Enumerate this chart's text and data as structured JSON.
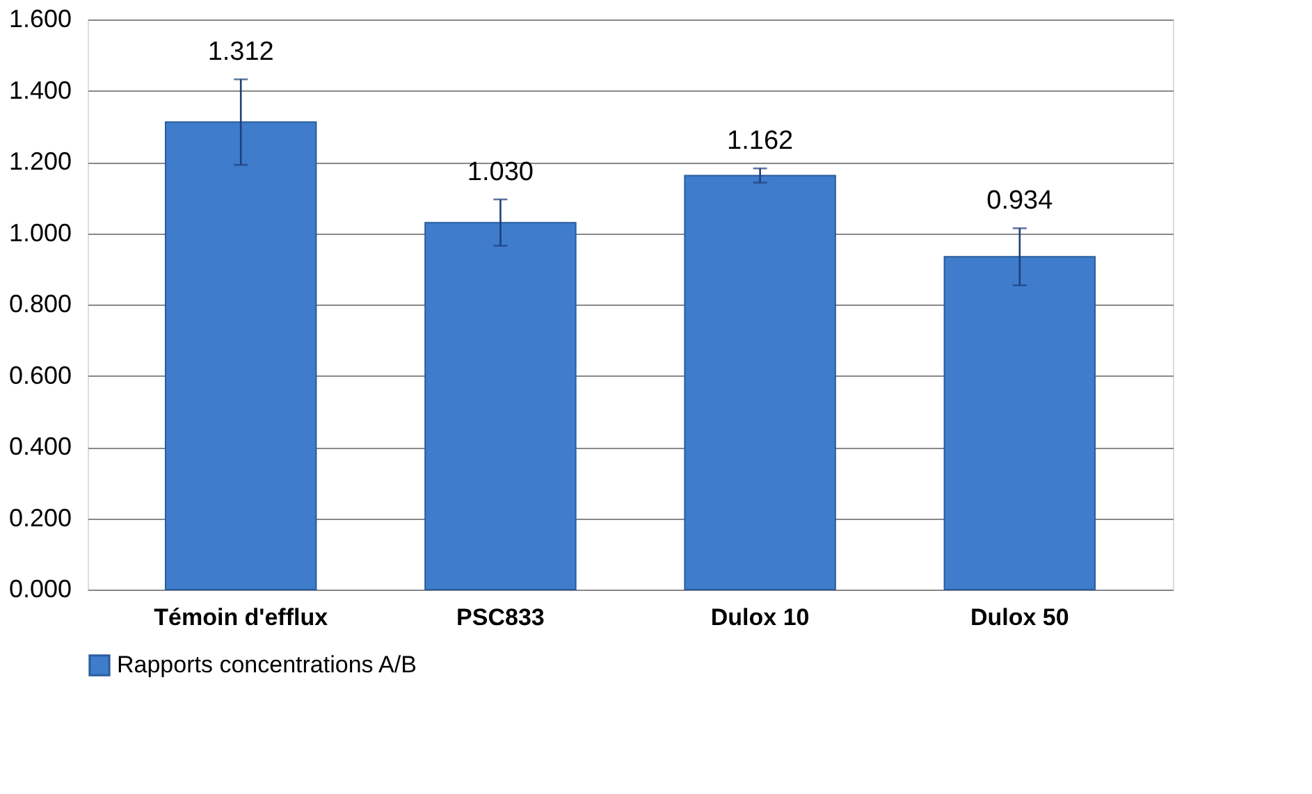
{
  "chart_data": {
    "type": "bar",
    "categories": [
      "Témoin d'efflux",
      "PSC833",
      "Dulox 10",
      "Dulox 50"
    ],
    "series": [
      {
        "name": "Rapports concentrations A/B",
        "color": "#3f7ccc",
        "values": [
          1.312,
          1.03,
          1.162,
          0.934
        ],
        "errors": [
          0.12,
          0.065,
          0.02,
          0.08
        ],
        "value_labels": [
          "1.312",
          "1.030",
          "1.162",
          "0.934"
        ]
      }
    ],
    "ylim": [
      0,
      1.6
    ],
    "yticks": [
      {
        "value": 0,
        "label": "0.000"
      },
      {
        "value": 0.2,
        "label": "0.200"
      },
      {
        "value": 0.4,
        "label": "0.400"
      },
      {
        "value": 0.6,
        "label": "0.600"
      },
      {
        "value": 0.8,
        "label": "0.800"
      },
      {
        "value": 1.0,
        "label": "1.000"
      },
      {
        "value": 1.2,
        "label": "1.200"
      },
      {
        "value": 1.4,
        "label": "1.400"
      },
      {
        "value": 1.6,
        "label": "1.600"
      }
    ],
    "grid": "y",
    "legend": "bottom"
  }
}
